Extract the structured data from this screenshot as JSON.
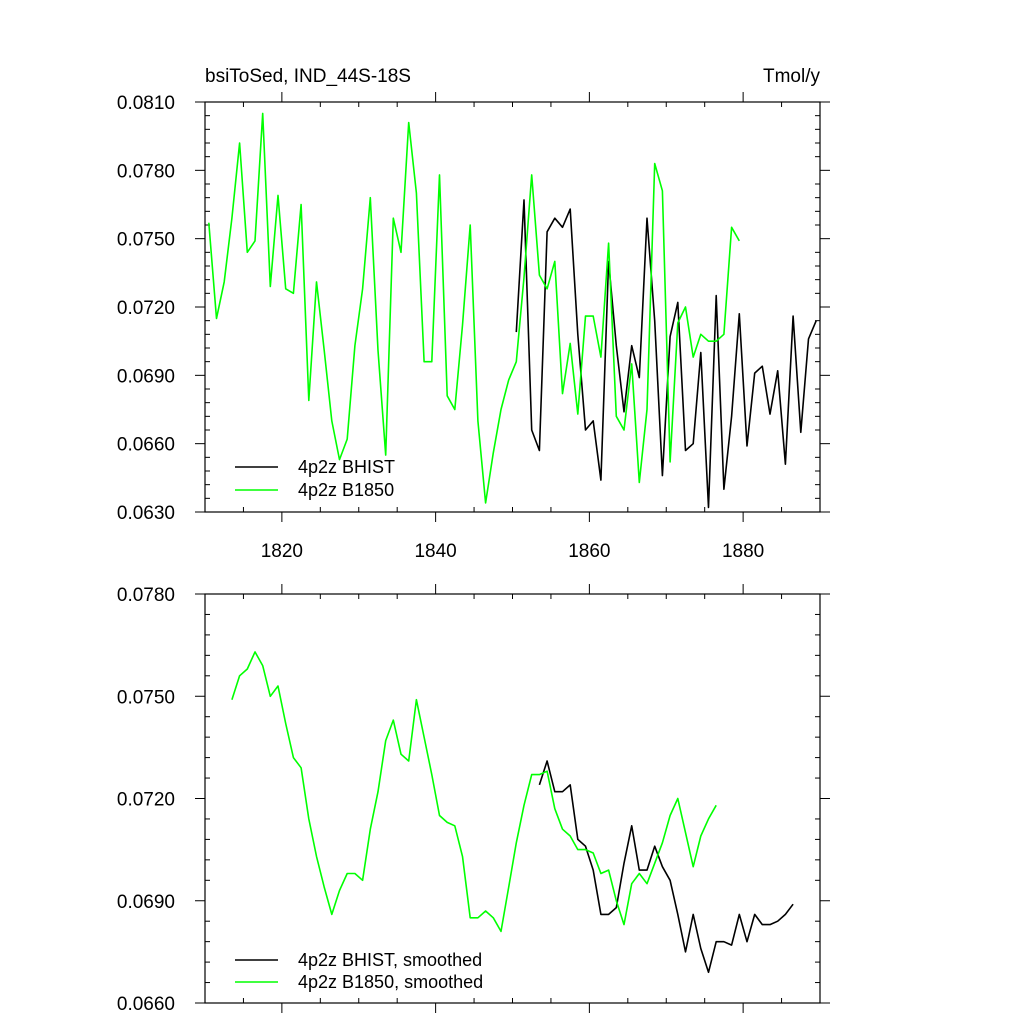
{
  "colors": {
    "black": "#000000",
    "green": "#00ff00"
  },
  "chart_data": [
    {
      "type": "line",
      "title_left": "bsiToSed, IND_44S-18S",
      "title_right": "Tmol/y",
      "xlim": [
        1810,
        1890
      ],
      "ylim": [
        0.063,
        0.081
      ],
      "xticks": [
        1820,
        1840,
        1860,
        1880
      ],
      "xtick_labels": [
        "1820",
        "1840",
        "1860",
        "1880"
      ],
      "yticks": [
        0.063,
        0.066,
        0.069,
        0.072,
        0.075,
        0.078,
        0.081
      ],
      "ytick_labels": [
        "0.0630",
        "0.0660",
        "0.0690",
        "0.0720",
        "0.0750",
        "0.0780",
        "0.0810"
      ],
      "legend_position": "bottom-left",
      "grid": false,
      "series": [
        {
          "name": "4p2z BHIST",
          "color": "#000000",
          "x": [
            1850.5,
            1851.5,
            1852.5,
            1853.5,
            1854.5,
            1855.5,
            1856.5,
            1857.5,
            1858.5,
            1859.5,
            1860.5,
            1861.5,
            1862.5,
            1863.5,
            1864.5,
            1865.5,
            1866.5,
            1867.5,
            1868.5,
            1869.5,
            1870.5,
            1871.5,
            1872.5,
            1873.5,
            1874.5,
            1875.5,
            1876.5,
            1877.5,
            1878.5,
            1879.5,
            1880.5,
            1881.5,
            1882.5,
            1883.5,
            1884.5,
            1885.5,
            1886.5,
            1887.5,
            1888.5,
            1889.5
          ],
          "y": [
            0.0709,
            0.0767,
            0.0666,
            0.0657,
            0.0753,
            0.0759,
            0.0755,
            0.0763,
            0.0708,
            0.0666,
            0.067,
            0.0644,
            0.074,
            0.0703,
            0.0674,
            0.0703,
            0.0689,
            0.0759,
            0.0714,
            0.0646,
            0.0707,
            0.0722,
            0.0657,
            0.066,
            0.07,
            0.0632,
            0.0725,
            0.064,
            0.0672,
            0.0717,
            0.0659,
            0.0691,
            0.0694,
            0.0673,
            0.0692,
            0.0651,
            0.0716,
            0.0665,
            0.0706,
            0.0714
          ]
        },
        {
          "name": "4p2z B1850",
          "color": "#00ff00",
          "x": [
            1810.5,
            1811.5,
            1812.5,
            1813.5,
            1814.5,
            1815.5,
            1816.5,
            1817.5,
            1818.5,
            1819.5,
            1820.5,
            1821.5,
            1822.5,
            1823.5,
            1824.5,
            1825.5,
            1826.5,
            1827.5,
            1828.5,
            1829.5,
            1830.5,
            1831.5,
            1832.5,
            1833.5,
            1834.5,
            1835.5,
            1836.5,
            1837.5,
            1838.5,
            1839.5,
            1840.5,
            1841.5,
            1842.5,
            1843.5,
            1844.5,
            1845.5,
            1846.5,
            1847.5,
            1848.5,
            1849.5,
            1850.5,
            1851.5,
            1852.5,
            1853.5,
            1854.5,
            1855.5,
            1856.5,
            1857.5,
            1858.5,
            1859.5,
            1860.5,
            1861.5,
            1862.5,
            1863.5,
            1864.5,
            1865.5,
            1866.5,
            1867.5,
            1868.5,
            1869.5,
            1870.5,
            1871.5,
            1872.5,
            1873.5,
            1874.5,
            1875.5,
            1876.5,
            1877.5,
            1878.5,
            1879.5
          ],
          "y": [
            0.0757,
            0.0715,
            0.0731,
            0.0759,
            0.0792,
            0.0744,
            0.0749,
            0.0805,
            0.0729,
            0.0769,
            0.0728,
            0.0726,
            0.0765,
            0.0679,
            0.0731,
            0.0701,
            0.067,
            0.0653,
            0.0662,
            0.0703,
            0.0728,
            0.0768,
            0.0701,
            0.0655,
            0.0759,
            0.0744,
            0.0801,
            0.077,
            0.0696,
            0.0696,
            0.0778,
            0.0681,
            0.0675,
            0.0712,
            0.0756,
            0.067,
            0.0634,
            0.0656,
            0.0675,
            0.0688,
            0.0696,
            0.0733,
            0.0778,
            0.0734,
            0.0728,
            0.074,
            0.0682,
            0.0704,
            0.0673,
            0.0716,
            0.0716,
            0.0698,
            0.0748,
            0.0672,
            0.0666,
            0.0695,
            0.0643,
            0.0675,
            0.0783,
            0.0771,
            0.0652,
            0.0713,
            0.072,
            0.0698,
            0.0708,
            0.0705,
            0.0705,
            0.0708,
            0.0755,
            0.0749
          ]
        }
      ]
    },
    {
      "type": "line",
      "xlim": [
        1810,
        1890
      ],
      "ylim": [
        0.066,
        0.078
      ],
      "xticks": [
        1820,
        1840,
        1860,
        1880
      ],
      "yticks": [
        0.066,
        0.069,
        0.072,
        0.075,
        0.078
      ],
      "ytick_labels": [
        "0.0660",
        "0.0690",
        "0.0720",
        "0.0750",
        "0.0780"
      ],
      "legend_position": "bottom-left",
      "grid": false,
      "series": [
        {
          "name": "4p2z BHIST, smoothed",
          "color": "#000000",
          "x": [
            1853.5,
            1854.5,
            1855.5,
            1856.5,
            1857.5,
            1858.5,
            1859.5,
            1860.5,
            1861.5,
            1862.5,
            1863.5,
            1864.5,
            1865.5,
            1866.5,
            1867.5,
            1868.5,
            1869.5,
            1870.5,
            1871.5,
            1872.5,
            1873.5,
            1874.5,
            1875.5,
            1876.5,
            1877.5,
            1878.5,
            1879.5,
            1880.5,
            1881.5,
            1882.5,
            1883.5,
            1884.5,
            1885.5,
            1886.5
          ],
          "y": [
            0.0724,
            0.0731,
            0.0722,
            0.0722,
            0.0724,
            0.0708,
            0.0706,
            0.0699,
            0.0686,
            0.0686,
            0.0688,
            0.0701,
            0.0712,
            0.0699,
            0.0699,
            0.0706,
            0.07,
            0.0696,
            0.0686,
            0.0675,
            0.0686,
            0.0676,
            0.0669,
            0.0678,
            0.0678,
            0.0677,
            0.0686,
            0.0678,
            0.0686,
            0.0683,
            0.0683,
            0.0684,
            0.0686,
            0.0689
          ]
        },
        {
          "name": "4p2z B1850, smoothed",
          "color": "#00ff00",
          "x": [
            1813.5,
            1814.5,
            1815.5,
            1816.5,
            1817.5,
            1818.5,
            1819.5,
            1820.5,
            1821.5,
            1822.5,
            1823.5,
            1824.5,
            1825.5,
            1826.5,
            1827.5,
            1828.5,
            1829.5,
            1830.5,
            1831.5,
            1832.5,
            1833.5,
            1834.5,
            1835.5,
            1836.5,
            1837.5,
            1838.5,
            1839.5,
            1840.5,
            1841.5,
            1842.5,
            1843.5,
            1844.5,
            1845.5,
            1846.5,
            1847.5,
            1848.5,
            1849.5,
            1850.5,
            1851.5,
            1852.5,
            1853.5,
            1854.5,
            1855.5,
            1856.5,
            1857.5,
            1858.5,
            1859.5,
            1860.5,
            1861.5,
            1862.5,
            1863.5,
            1864.5,
            1865.5,
            1866.5,
            1867.5,
            1868.5,
            1869.5,
            1870.5,
            1871.5,
            1872.5,
            1873.5,
            1874.5,
            1875.5,
            1876.5
          ],
          "y": [
            0.0749,
            0.0756,
            0.0758,
            0.0763,
            0.0759,
            0.075,
            0.0753,
            0.0742,
            0.0732,
            0.0729,
            0.0714,
            0.0703,
            0.0694,
            0.0686,
            0.0693,
            0.0698,
            0.0698,
            0.0696,
            0.0711,
            0.0722,
            0.0737,
            0.0743,
            0.0733,
            0.0731,
            0.0749,
            0.0738,
            0.0727,
            0.0715,
            0.0713,
            0.0712,
            0.0703,
            0.0685,
            0.0685,
            0.0687,
            0.0685,
            0.0681,
            0.0694,
            0.0707,
            0.0718,
            0.0727,
            0.0727,
            0.0728,
            0.0717,
            0.0711,
            0.0709,
            0.0705,
            0.0705,
            0.0704,
            0.0698,
            0.0699,
            0.069,
            0.0683,
            0.0695,
            0.0698,
            0.0695,
            0.0701,
            0.0707,
            0.0715,
            0.072,
            0.071,
            0.07,
            0.0709,
            0.0714,
            0.0718
          ]
        }
      ]
    }
  ]
}
